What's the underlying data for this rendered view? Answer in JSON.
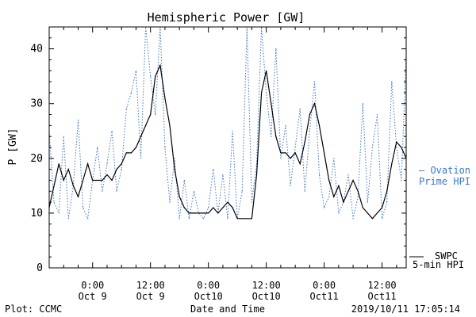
{
  "chart_data": {
    "type": "line",
    "title": "Hemispheric Power [GW]",
    "ylabel": "P [GW]",
    "xlabel": "Date and Time",
    "ylim": [
      0,
      44
    ],
    "yticks": [
      0,
      10,
      20,
      30,
      40
    ],
    "xlim": [
      "2019-10-08T15:00",
      "2019-10-11T17:00"
    ],
    "xticks": [
      {
        "t": "2019-10-09T00:00",
        "line1": "0:00",
        "line2": "Oct 9"
      },
      {
        "t": "2019-10-09T12:00",
        "line1": "12:00",
        "line2": "Oct 9"
      },
      {
        "t": "2019-10-10T00:00",
        "line1": "0:00",
        "line2": "Oct10"
      },
      {
        "t": "2019-10-10T12:00",
        "line1": "12:00",
        "line2": "Oct10"
      },
      {
        "t": "2019-10-11T00:00",
        "line1": "0:00",
        "line2": "Oct11"
      },
      {
        "t": "2019-10-11T12:00",
        "line1": "12:00",
        "line2": "Oct11"
      }
    ],
    "series": [
      {
        "name": "SWPC 5-min HPI",
        "color": "#000000",
        "style": "solid",
        "x": [
          "2019-10-08T15:00",
          "2019-10-08T16:00",
          "2019-10-08T17:00",
          "2019-10-08T18:00",
          "2019-10-08T19:00",
          "2019-10-08T20:00",
          "2019-10-08T21:00",
          "2019-10-08T22:00",
          "2019-10-08T23:00",
          "2019-10-09T00:00",
          "2019-10-09T01:00",
          "2019-10-09T02:00",
          "2019-10-09T03:00",
          "2019-10-09T04:00",
          "2019-10-09T05:00",
          "2019-10-09T06:00",
          "2019-10-09T07:00",
          "2019-10-09T08:00",
          "2019-10-09T09:00",
          "2019-10-09T10:00",
          "2019-10-09T11:00",
          "2019-10-09T12:00",
          "2019-10-09T13:00",
          "2019-10-09T14:00",
          "2019-10-09T15:00",
          "2019-10-09T16:00",
          "2019-10-09T17:00",
          "2019-10-09T18:00",
          "2019-10-09T19:00",
          "2019-10-09T20:00",
          "2019-10-09T21:00",
          "2019-10-09T22:00",
          "2019-10-09T23:00",
          "2019-10-10T00:00",
          "2019-10-10T01:00",
          "2019-10-10T02:00",
          "2019-10-10T03:00",
          "2019-10-10T04:00",
          "2019-10-10T05:00",
          "2019-10-10T06:00",
          "2019-10-10T07:00",
          "2019-10-10T08:00",
          "2019-10-10T09:00",
          "2019-10-10T10:00",
          "2019-10-10T11:00",
          "2019-10-10T12:00",
          "2019-10-10T13:00",
          "2019-10-10T14:00",
          "2019-10-10T15:00",
          "2019-10-10T16:00",
          "2019-10-10T17:00",
          "2019-10-10T18:00",
          "2019-10-10T19:00",
          "2019-10-10T20:00",
          "2019-10-10T21:00",
          "2019-10-10T22:00",
          "2019-10-10T23:00",
          "2019-10-11T00:00",
          "2019-10-11T01:00",
          "2019-10-11T02:00",
          "2019-10-11T03:00",
          "2019-10-11T04:00",
          "2019-10-11T05:00",
          "2019-10-11T06:00",
          "2019-10-11T07:00",
          "2019-10-11T08:00",
          "2019-10-11T09:00",
          "2019-10-11T10:00",
          "2019-10-11T11:00",
          "2019-10-11T12:00",
          "2019-10-11T13:00",
          "2019-10-11T14:00",
          "2019-10-11T15:00",
          "2019-10-11T16:00",
          "2019-10-11T17:00"
        ],
        "y": [
          11,
          15,
          19,
          16,
          18,
          15,
          13,
          16,
          19,
          16,
          16,
          16,
          17,
          16,
          18,
          19,
          21,
          21,
          22,
          24,
          26,
          28,
          35,
          37,
          31,
          26,
          18,
          13,
          11,
          10,
          10,
          10,
          10,
          10,
          11,
          10,
          11,
          12,
          11,
          9,
          9,
          9,
          9,
          17,
          32,
          36,
          30,
          24,
          21,
          21,
          20,
          21,
          19,
          23,
          28,
          30,
          26,
          21,
          16,
          13,
          15,
          12,
          14,
          16,
          14,
          11,
          10,
          9,
          10,
          11,
          14,
          19,
          23,
          22,
          20
        ]
      },
      {
        "name": "Ovation Prime HPI",
        "color": "#3a78c9",
        "style": "dotted",
        "x": [
          "2019-10-08T15:00",
          "2019-10-08T16:00",
          "2019-10-08T17:00",
          "2019-10-08T18:00",
          "2019-10-08T19:00",
          "2019-10-08T20:00",
          "2019-10-08T21:00",
          "2019-10-08T22:00",
          "2019-10-08T23:00",
          "2019-10-09T00:00",
          "2019-10-09T01:00",
          "2019-10-09T02:00",
          "2019-10-09T03:00",
          "2019-10-09T04:00",
          "2019-10-09T05:00",
          "2019-10-09T06:00",
          "2019-10-09T07:00",
          "2019-10-09T08:00",
          "2019-10-09T09:00",
          "2019-10-09T10:00",
          "2019-10-09T11:00",
          "2019-10-09T12:00",
          "2019-10-09T13:00",
          "2019-10-09T14:00",
          "2019-10-09T15:00",
          "2019-10-09T16:00",
          "2019-10-09T17:00",
          "2019-10-09T18:00",
          "2019-10-09T19:00",
          "2019-10-09T20:00",
          "2019-10-09T21:00",
          "2019-10-09T22:00",
          "2019-10-09T23:00",
          "2019-10-10T00:00",
          "2019-10-10T01:00",
          "2019-10-10T02:00",
          "2019-10-10T03:00",
          "2019-10-10T04:00",
          "2019-10-10T05:00",
          "2019-10-10T06:00",
          "2019-10-10T07:00",
          "2019-10-10T08:00",
          "2019-10-10T09:00",
          "2019-10-10T10:00",
          "2019-10-10T11:00",
          "2019-10-10T12:00",
          "2019-10-10T13:00",
          "2019-10-10T14:00",
          "2019-10-10T15:00",
          "2019-10-10T16:00",
          "2019-10-10T17:00",
          "2019-10-10T18:00",
          "2019-10-10T19:00",
          "2019-10-10T20:00",
          "2019-10-10T21:00",
          "2019-10-10T22:00",
          "2019-10-10T23:00",
          "2019-10-11T00:00",
          "2019-10-11T01:00",
          "2019-10-11T02:00",
          "2019-10-11T03:00",
          "2019-10-11T04:00",
          "2019-10-11T05:00",
          "2019-10-11T06:00",
          "2019-10-11T07:00",
          "2019-10-11T08:00",
          "2019-10-11T09:00",
          "2019-10-11T10:00",
          "2019-10-11T11:00",
          "2019-10-11T12:00",
          "2019-10-11T13:00",
          "2019-10-11T14:00",
          "2019-10-11T15:00",
          "2019-10-11T16:00",
          "2019-10-11T17:00"
        ],
        "y": [
          25,
          12,
          10,
          24,
          9,
          15,
          27,
          11,
          9,
          16,
          22,
          14,
          19,
          25,
          14,
          18,
          29,
          32,
          36,
          20,
          44,
          35,
          28,
          44,
          22,
          12,
          20,
          9,
          16,
          9,
          14,
          10,
          9,
          11,
          18,
          10,
          17,
          9,
          25,
          9,
          14,
          44,
          12,
          19,
          44,
          32,
          24,
          40,
          20,
          26,
          15,
          22,
          29,
          14,
          25,
          34,
          17,
          11,
          13,
          20,
          10,
          12,
          17,
          9,
          13,
          30,
          12,
          22,
          28,
          9,
          12,
          34,
          22,
          16,
          39
        ]
      }
    ],
    "legend": [
      {
        "series": "Ovation Prime HPI",
        "line1": "— Ovation",
        "line2": "Prime HPI",
        "position": "right-middle"
      },
      {
        "series": "SWPC 5-min HPI",
        "line1": "SWPC",
        "line2": "5-min HPI",
        "position": "right-bottom"
      }
    ],
    "grid": false
  },
  "footer": {
    "left": "Plot: CCMC",
    "center": "Date and Time",
    "right": "2019/10/11 17:05:14"
  }
}
